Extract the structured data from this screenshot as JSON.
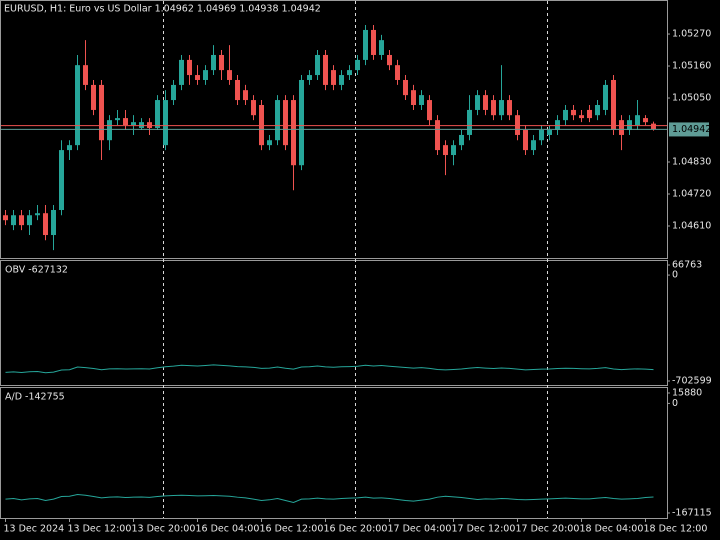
{
  "chart_data": [
    {
      "type": "candlestick",
      "title": "EURUSD, H1:  Euro vs US Dollar  1.04962 1.04969 1.04938 1.04942",
      "up_color": "#26a69a",
      "down_color": "#ef5350",
      "open": [
        1.04647,
        1.04613,
        1.04647,
        1.04613,
        1.04647,
        1.04654,
        1.04579,
        1.04665,
        1.04871,
        1.04888,
        1.05163,
        1.05095,
        1.05095,
        1.04905,
        1.04974,
        1.04981,
        1.04957,
        1.04947,
        1.04967,
        1.04947,
        1.04888,
        1.05043,
        1.05095,
        1.05181,
        1.05129,
        1.05112,
        1.05146,
        1.05198,
        1.05146,
        1.05112,
        1.05077,
        1.05043,
        1.05026,
        1.04888,
        1.04905,
        1.05043,
        1.05043,
        1.04819,
        1.05112,
        1.05129,
        1.05198,
        1.05146,
        1.05095,
        1.05129,
        1.05146,
        1.05181,
        1.05284,
        1.05198,
        1.05198,
        1.05163,
        1.05112,
        1.05077,
        1.05026,
        1.05043,
        1.04974,
        1.04888,
        1.04854,
        1.04888,
        1.04923,
        1.05009,
        1.0506,
        1.05043,
        1.04991,
        1.05043,
        1.04991,
        1.0494,
        1.04871,
        1.04905,
        1.04923,
        1.0494,
        1.04974,
        1.05009,
        1.04991,
        1.05009,
        1.04991,
        1.05009,
        1.05112,
        1.04974,
        1.0494,
        1.04957,
        1.04981,
        1.04962
      ],
      "high": [
        1.04665,
        1.04665,
        1.04665,
        1.04665,
        1.04682,
        1.04682,
        1.04682,
        1.04905,
        1.04905,
        1.05198,
        1.05249,
        1.05112,
        1.05112,
        1.04991,
        1.05009,
        1.05009,
        1.04991,
        1.04981,
        1.04981,
        1.0506,
        1.05077,
        1.05112,
        1.05198,
        1.05198,
        1.05163,
        1.05163,
        1.05232,
        1.05215,
        1.05232,
        1.05129,
        1.05095,
        1.0506,
        1.05043,
        1.04923,
        1.0506,
        1.0506,
        1.0506,
        1.05129,
        1.05146,
        1.05215,
        1.05215,
        1.05163,
        1.05146,
        1.05163,
        1.05198,
        1.05301,
        1.05301,
        1.05267,
        1.05215,
        1.05181,
        1.05129,
        1.05095,
        1.05077,
        1.0506,
        1.04991,
        1.04905,
        1.04905,
        1.0494,
        1.0506,
        1.05077,
        1.05077,
        1.0506,
        1.05163,
        1.0506,
        1.05009,
        1.04957,
        1.04923,
        1.04957,
        1.04957,
        1.04991,
        1.05026,
        1.05026,
        1.05009,
        1.05026,
        1.05043,
        1.05112,
        1.05129,
        1.04991,
        1.04991,
        1.05043,
        1.04991,
        1.04969
      ],
      "low": [
        1.04613,
        1.04596,
        1.04596,
        1.04579,
        1.0463,
        1.04561,
        1.04527,
        1.04647,
        1.04837,
        1.04871,
        1.05077,
        1.04991,
        1.04837,
        1.04871,
        1.04957,
        1.0494,
        1.04923,
        1.0494,
        1.04923,
        1.0494,
        1.04871,
        1.05026,
        1.05077,
        1.05095,
        1.05095,
        1.05095,
        1.05129,
        1.05112,
        1.05095,
        1.05026,
        1.05026,
        1.04974,
        1.04871,
        1.04871,
        1.04888,
        1.04871,
        1.04733,
        1.04802,
        1.05095,
        1.05112,
        1.05077,
        1.05077,
        1.05077,
        1.05112,
        1.05129,
        1.05163,
        1.05181,
        1.05181,
        1.05146,
        1.05095,
        1.05043,
        1.05009,
        1.05009,
        1.04957,
        1.04854,
        1.04785,
        1.04819,
        1.04871,
        1.04905,
        1.04991,
        1.04991,
        1.04974,
        1.04974,
        1.04974,
        1.04905,
        1.04854,
        1.04854,
        1.04888,
        1.04905,
        1.04923,
        1.04957,
        1.04974,
        1.04967,
        1.04967,
        1.04974,
        1.04991,
        1.04923,
        1.04871,
        1.04923,
        1.0494,
        1.04957,
        1.04938
      ],
      "close": [
        1.0463,
        1.04647,
        1.04613,
        1.04647,
        1.04654,
        1.04579,
        1.04665,
        1.04871,
        1.04888,
        1.05163,
        1.05095,
        1.05009,
        1.04905,
        1.04974,
        1.04981,
        1.04957,
        1.04967,
        1.04967,
        1.04947,
        1.05043,
        1.05043,
        1.05095,
        1.05181,
        1.05129,
        1.05112,
        1.05146,
        1.05198,
        1.05146,
        1.05112,
        1.05043,
        1.05043,
        1.04991,
        1.04888,
        1.04905,
        1.05043,
        1.04888,
        1.04819,
        1.05112,
        1.05129,
        1.05198,
        1.05095,
        1.05095,
        1.05129,
        1.05146,
        1.05181,
        1.05284,
        1.05198,
        1.05249,
        1.05163,
        1.05112,
        1.0506,
        1.05026,
        1.0506,
        1.04974,
        1.04871,
        1.04854,
        1.04888,
        1.04923,
        1.05009,
        1.0506,
        1.05009,
        1.04991,
        1.05043,
        1.04991,
        1.04923,
        1.04871,
        1.04905,
        1.0494,
        1.0494,
        1.04974,
        1.05009,
        1.04991,
        1.04981,
        1.04981,
        1.05026,
        1.05095,
        1.0494,
        1.04923,
        1.04974,
        1.04991,
        1.04967,
        1.04942
      ],
      "bid": 1.04942,
      "bid_color": "#5f9c96",
      "ask": 1.04955,
      "ask_color": "#ef5350",
      "ylim": [
        1.045,
        1.05387
      ],
      "yticks": [
        {
          "value": 1.0527,
          "label": "1.05270"
        },
        {
          "value": 1.0516,
          "label": "1.05160"
        },
        {
          "value": 1.0505,
          "label": "1.05050"
        },
        {
          "value": 1.0483,
          "label": "1.04830"
        },
        {
          "value": 1.0472,
          "label": "1.04720"
        },
        {
          "value": 1.0461,
          "label": "1.04610"
        }
      ],
      "xticks": [
        {
          "value": 0,
          "label": "13 Dec 2024"
        },
        {
          "value": 8,
          "label": "13 Dec 12:00"
        },
        {
          "value": 16,
          "label": "13 Dec 20:00"
        },
        {
          "value": 24,
          "label": "16 Dec 04:00"
        },
        {
          "value": 32,
          "label": "16 Dec 12:00"
        },
        {
          "value": 40,
          "label": "16 Dec 20:00"
        },
        {
          "value": 48,
          "label": "17 Dec 04:00"
        },
        {
          "value": 56,
          "label": "17 Dec 12:00"
        },
        {
          "value": 64,
          "label": "17 Dec 20:00"
        },
        {
          "value": 72,
          "label": "18 Dec 04:00"
        },
        {
          "value": 80,
          "label": "18 Dec 12:00"
        }
      ]
    },
    {
      "type": "line",
      "title": "OBV -627132",
      "color": "#26a69a",
      "values": [
        -645000,
        -642000,
        -646000,
        -641000,
        -640000,
        -648000,
        -644000,
        -630000,
        -628000,
        -610000,
        -614000,
        -620000,
        -628000,
        -622000,
        -621000,
        -623000,
        -622000,
        -621000,
        -623000,
        -615000,
        -608000,
        -604000,
        -598000,
        -601000,
        -603000,
        -600000,
        -596000,
        -599000,
        -602000,
        -607000,
        -609000,
        -612000,
        -619000,
        -617000,
        -610000,
        -618000,
        -624000,
        -610000,
        -608000,
        -603000,
        -609000,
        -611000,
        -608000,
        -607000,
        -605000,
        -598000,
        -603000,
        -600000,
        -605000,
        -609000,
        -613000,
        -617000,
        -614000,
        -619000,
        -626000,
        -629000,
        -626000,
        -623000,
        -617000,
        -613000,
        -617000,
        -620000,
        -616000,
        -619000,
        -624000,
        -629000,
        -626000,
        -624000,
        -623000,
        -620000,
        -618000,
        -619000,
        -621000,
        -622000,
        -619000,
        -614000,
        -623000,
        -627000,
        -624000,
        -622000,
        -624000,
        -627132
      ],
      "ylim": [
        -702599,
        66763
      ],
      "yticks": [
        66763,
        0,
        -702599
      ]
    },
    {
      "type": "line",
      "title": "A/D -142755",
      "color": "#26a69a",
      "values": [
        -146000,
        -145000,
        -147000,
        -145500,
        -145000,
        -148000,
        -146000,
        -142000,
        -141500,
        -139000,
        -140000,
        -142000,
        -144000,
        -143000,
        -142500,
        -143500,
        -143000,
        -142800,
        -143200,
        -142000,
        -141000,
        -140500,
        -140000,
        -140500,
        -141000,
        -140800,
        -140500,
        -141000,
        -141500,
        -143000,
        -144000,
        -146000,
        -148000,
        -147000,
        -145000,
        -148000,
        -151000,
        -146000,
        -145500,
        -144500,
        -145500,
        -146000,
        -145000,
        -144500,
        -144000,
        -143000,
        -144500,
        -144000,
        -145000,
        -146500,
        -148000,
        -149000,
        -147500,
        -146000,
        -143000,
        -141500,
        -142500,
        -143500,
        -145000,
        -146500,
        -145500,
        -146000,
        -145000,
        -145500,
        -146500,
        -147000,
        -146500,
        -146000,
        -145500,
        -145000,
        -144500,
        -145000,
        -145500,
        -145500,
        -144500,
        -143500,
        -145000,
        -146000,
        -145500,
        -145000,
        -143500,
        -142755
      ],
      "ylim": [
        -167115,
        15880
      ],
      "yticks": [
        15880,
        0,
        -167115
      ]
    }
  ]
}
